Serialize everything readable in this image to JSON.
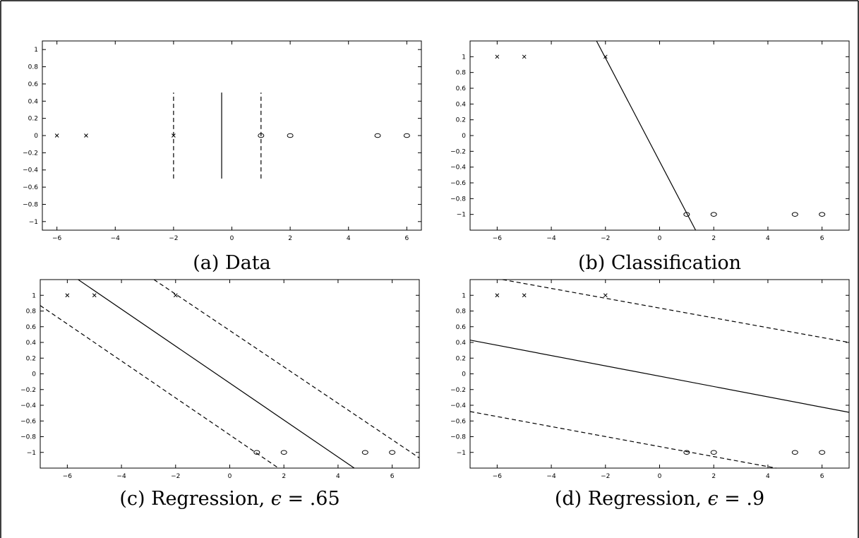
{
  "chart_data": [
    {
      "type": "scatter",
      "caption": "(a) Data",
      "xlim": [
        -6.5,
        6.5
      ],
      "ylim": [
        -1.1,
        1.1
      ],
      "xticks": [
        -6,
        -4,
        -2,
        0,
        2,
        4,
        6
      ],
      "yticks": [
        -1,
        -0.8,
        -0.6,
        -0.4,
        -0.2,
        0,
        0.2,
        0.4,
        0.6,
        0.8,
        1
      ],
      "series": [
        {
          "marker": "x",
          "points": [
            [
              -6,
              0
            ],
            [
              -5,
              0
            ],
            [
              -2,
              0
            ]
          ]
        },
        {
          "marker": "o",
          "points": [
            [
              1,
              0
            ],
            [
              2,
              0
            ],
            [
              5,
              0
            ],
            [
              6,
              0
            ]
          ]
        }
      ],
      "lines": [
        {
          "style": "solid",
          "x1": -0.35,
          "y1": -0.5,
          "x2": -0.35,
          "y2": 0.5
        },
        {
          "style": "dashed",
          "x1": -2,
          "y1": -0.5,
          "x2": -2,
          "y2": 0.5
        },
        {
          "style": "dashed",
          "x1": 1,
          "y1": -0.5,
          "x2": 1,
          "y2": 0.5
        }
      ],
      "grid": false
    },
    {
      "type": "scatter",
      "caption": "(b) Classification",
      "xlim": [
        -7,
        7
      ],
      "ylim": [
        -1.2,
        1.2
      ],
      "xticks": [
        -6,
        -4,
        -2,
        0,
        2,
        4,
        6
      ],
      "yticks": [
        -1,
        -0.8,
        -0.6,
        -0.4,
        -0.2,
        0,
        0.2,
        0.4,
        0.6,
        0.8,
        1
      ],
      "series": [
        {
          "marker": "x",
          "points": [
            [
              -6,
              1
            ],
            [
              -5,
              1
            ],
            [
              -2,
              1
            ]
          ]
        },
        {
          "marker": "o",
          "points": [
            [
              1,
              -1
            ],
            [
              2,
              -1
            ],
            [
              5,
              -1
            ],
            [
              6,
              -1
            ]
          ]
        }
      ],
      "lines": [
        {
          "style": "solid",
          "x1": -2.33,
          "y1": 1.2,
          "x2": 1.33,
          "y2": -1.2
        }
      ],
      "grid": false
    },
    {
      "type": "scatter",
      "caption_prefix": "(c) Regression,",
      "caption_symbol": "ϵ",
      "caption_value": "= .65",
      "xlim": [
        -7,
        7
      ],
      "ylim": [
        -1.2,
        1.2
      ],
      "xticks": [
        -6,
        -4,
        -2,
        0,
        2,
        4,
        6
      ],
      "yticks": [
        -1,
        -0.8,
        -0.6,
        -0.4,
        -0.2,
        0,
        0.2,
        0.4,
        0.6,
        0.8,
        1
      ],
      "series": [
        {
          "marker": "x",
          "points": [
            [
              -6,
              1
            ],
            [
              -5,
              1
            ],
            [
              -2,
              1
            ]
          ]
        },
        {
          "marker": "o",
          "points": [
            [
              1,
              -1
            ],
            [
              2,
              -1
            ],
            [
              5,
              -1
            ],
            [
              6,
              -1
            ]
          ]
        }
      ],
      "lines": [
        {
          "style": "solid",
          "x1": -5.6,
          "y1": 1.2,
          "x2": 4.6,
          "y2": -1.2
        },
        {
          "style": "dashed",
          "x1": -7,
          "y1": 0.87,
          "x2": 1.8,
          "y2": -1.2
        },
        {
          "style": "dashed",
          "x1": -2.8,
          "y1": 1.2,
          "x2": 7,
          "y2": -1.07
        }
      ],
      "grid": false
    },
    {
      "type": "scatter",
      "caption_prefix": "(d) Regression,",
      "caption_symbol": "ϵ",
      "caption_value": "= .9",
      "xlim": [
        -7,
        7
      ],
      "ylim": [
        -1.2,
        1.2
      ],
      "xticks": [
        -6,
        -4,
        -2,
        0,
        2,
        4,
        6
      ],
      "yticks": [
        -1,
        -0.8,
        -0.6,
        -0.4,
        -0.2,
        0,
        0.2,
        0.4,
        0.6,
        0.8,
        1
      ],
      "series": [
        {
          "marker": "x",
          "points": [
            [
              -6,
              1
            ],
            [
              -5,
              1
            ],
            [
              -2,
              1
            ]
          ]
        },
        {
          "marker": "o",
          "points": [
            [
              1,
              -1
            ],
            [
              2,
              -1
            ],
            [
              5,
              -1
            ],
            [
              6,
              -1
            ]
          ]
        }
      ],
      "lines": [
        {
          "style": "solid",
          "x1": -7,
          "y1": 0.43,
          "x2": 7,
          "y2": -0.49
        },
        {
          "style": "dashed",
          "x1": -5.8,
          "y1": 1.2,
          "x2": 7,
          "y2": 0.4
        },
        {
          "style": "dashed",
          "x1": -7,
          "y1": -0.48,
          "x2": 4.3,
          "y2": -1.2
        }
      ],
      "grid": false
    }
  ]
}
